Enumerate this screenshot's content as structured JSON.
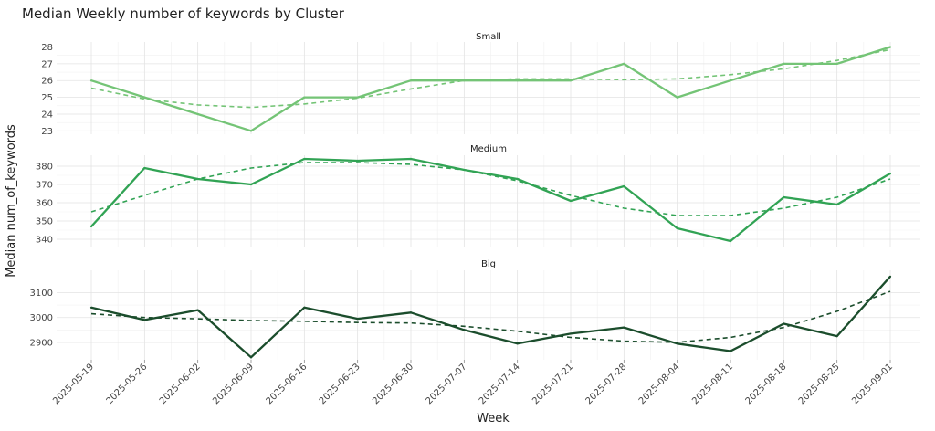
{
  "chart_data": {
    "type": "line",
    "title": "Median Weekly number of keywords by Cluster",
    "xlabel": "Week",
    "ylabel": "Median num_of_keywords",
    "x": [
      "2025-05-19",
      "2025-05-26",
      "2025-06-02",
      "2025-06-09",
      "2025-06-16",
      "2025-06-23",
      "2025-06-30",
      "2025-07-07",
      "2025-07-14",
      "2025-07-21",
      "2025-07-28",
      "2025-08-04",
      "2025-08-11",
      "2025-08-18",
      "2025-08-25",
      "2025-09-01"
    ],
    "grid": true,
    "legend": "none",
    "panels": [
      {
        "name": "Small",
        "color": "#74c476",
        "ylim": [
          22.8,
          28.3
        ],
        "yticks": [
          23,
          24,
          25,
          26,
          27,
          28
        ],
        "values": [
          26,
          25,
          24,
          23,
          25,
          25,
          26,
          26,
          26,
          26,
          27,
          25,
          26,
          27,
          27,
          28
        ],
        "trend": [
          25.55,
          24.9,
          24.55,
          24.4,
          24.6,
          24.95,
          25.5,
          26.0,
          26.1,
          26.1,
          26.05,
          26.1,
          26.35,
          26.7,
          27.2,
          27.85
        ]
      },
      {
        "name": "Medium",
        "color": "#31a354",
        "ylim": [
          336,
          386
        ],
        "yticks": [
          340,
          350,
          360,
          370,
          380
        ],
        "values": [
          347,
          379,
          373,
          370,
          384,
          383,
          384,
          378,
          373,
          361,
          369,
          346,
          339,
          363,
          359,
          376
        ],
        "trend": [
          355,
          364,
          373,
          379,
          382,
          382,
          381,
          378,
          372,
          364,
          357,
          353,
          353,
          357,
          363,
          373
        ]
      },
      {
        "name": "Big",
        "color": "#1b4d2c",
        "ylim": [
          2830,
          3190
        ],
        "yticks": [
          2900,
          3000,
          3100
        ],
        "values": [
          3040,
          2990,
          3030,
          2840,
          3040,
          2995,
          3020,
          2950,
          2895,
          2935,
          2960,
          2895,
          2865,
          2975,
          2925,
          3165
        ],
        "trend": [
          3015,
          3000,
          2995,
          2988,
          2985,
          2980,
          2978,
          2965,
          2945,
          2920,
          2905,
          2900,
          2920,
          2960,
          3025,
          3105
        ]
      }
    ]
  }
}
